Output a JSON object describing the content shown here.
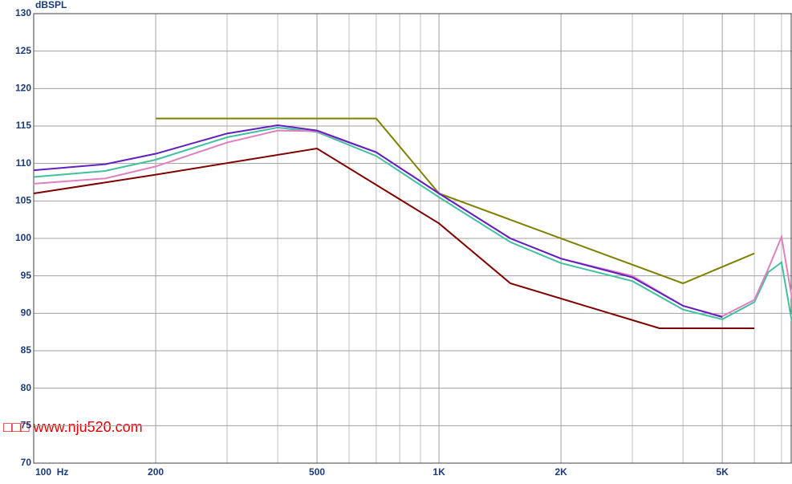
{
  "chart_data": {
    "type": "line",
    "y_label": "dBSPL",
    "log_x": true,
    "grid": true,
    "annotation": "□□□ www.nju520.com",
    "annotation_color": "#e00000",
    "xlim": [
      100,
      7430
    ],
    "ylim": [
      70,
      130
    ],
    "xticks": [
      {
        "value": 100,
        "label": "100  Hz"
      },
      200,
      500,
      {
        "value": 1000,
        "label": "1K"
      },
      {
        "value": 2000,
        "label": "2K"
      },
      {
        "value": 5000,
        "label": "5K"
      }
    ],
    "xgrid": [
      300,
      400,
      600,
      700,
      800,
      900,
      3000,
      4000,
      6000,
      7000
    ],
    "yticks": [
      70,
      75,
      80,
      85,
      90,
      95,
      100,
      105,
      110,
      115,
      120,
      125,
      130
    ],
    "series": [
      {
        "color": "#808000",
        "x": [
          200,
          700,
          1000,
          4000,
          6000
        ],
        "values": [
          116,
          116,
          106,
          94,
          98
        ]
      },
      {
        "color": "#800000",
        "x": [
          100,
          200,
          500,
          1000,
          1500,
          3500,
          6000
        ],
        "values": [
          106,
          108.5,
          112,
          102,
          94,
          88,
          88
        ]
      },
      {
        "color": "#40c0a0",
        "x": [
          100,
          150,
          200,
          300,
          400,
          500,
          700,
          1000,
          1500,
          2000,
          3000,
          4000,
          5000,
          6000,
          6500,
          7000,
          7430
        ],
        "values": [
          108.2,
          109,
          110.5,
          113.5,
          114.8,
          114.2,
          111,
          105.5,
          99.5,
          96.7,
          94.3,
          90.5,
          89.2,
          91.5,
          95.5,
          96.8,
          88.8
        ]
      },
      {
        "color": "#e080c0",
        "x": [
          100,
          150,
          200,
          300,
          400,
          500,
          700,
          1000,
          1500,
          2000,
          3000,
          4000,
          5000,
          6000,
          6500,
          7000,
          7430
        ],
        "values": [
          107.3,
          108,
          109.6,
          112.8,
          114.4,
          114.3,
          111.5,
          106,
          100,
          97.3,
          95,
          91,
          89.6,
          91.8,
          96,
          100.2,
          92
        ]
      },
      {
        "color": "#6020c0",
        "x": [
          100,
          150,
          200,
          300,
          400,
          500,
          700,
          1000,
          1500,
          2000,
          3000,
          4000,
          5000
        ],
        "values": [
          109.1,
          109.9,
          111.3,
          114,
          115.1,
          114.4,
          111.5,
          106,
          100,
          97.3,
          94.8,
          91,
          89.5
        ]
      }
    ]
  }
}
